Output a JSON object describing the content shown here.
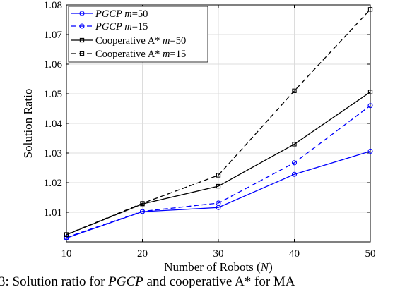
{
  "chart_data": {
    "type": "line",
    "x": [
      10,
      20,
      30,
      40,
      50
    ],
    "xlabel": "Number of Robots (N)",
    "ylabel": "Solution Ratio",
    "xlim": [
      10,
      50
    ],
    "ylim": [
      1.0,
      1.08
    ],
    "xticks": [
      "10",
      "20",
      "30",
      "40",
      "50"
    ],
    "yticks": [
      "1.01",
      "1.02",
      "1.03",
      "1.04",
      "1.05",
      "1.06",
      "1.07",
      "1.08"
    ],
    "grid": true,
    "legend_position": "top-left",
    "series": [
      {
        "name": "PGCP m=50",
        "color": "#0000ff",
        "dash": "solid",
        "marker": "circle",
        "values": [
          1.0013,
          1.0102,
          1.0116,
          1.0228,
          1.0306
        ]
      },
      {
        "name": "PGCP m=15",
        "color": "#0000ff",
        "dash": "dashed",
        "marker": "circle",
        "values": [
          1.0015,
          1.0103,
          1.0131,
          1.0267,
          1.046
        ]
      },
      {
        "name": "Cooperative A* m=50",
        "color": "#000000",
        "dash": "solid",
        "marker": "square",
        "values": [
          1.0024,
          1.0128,
          1.0188,
          1.033,
          1.0506
        ]
      },
      {
        "name": "Cooperative A* m=15",
        "color": "#000000",
        "dash": "dashed",
        "marker": "square",
        "values": [
          1.0025,
          1.013,
          1.0225,
          1.051,
          1.0785
        ]
      }
    ]
  },
  "caption": "3: Solution ratio for PGCP and cooperative A* for MA"
}
